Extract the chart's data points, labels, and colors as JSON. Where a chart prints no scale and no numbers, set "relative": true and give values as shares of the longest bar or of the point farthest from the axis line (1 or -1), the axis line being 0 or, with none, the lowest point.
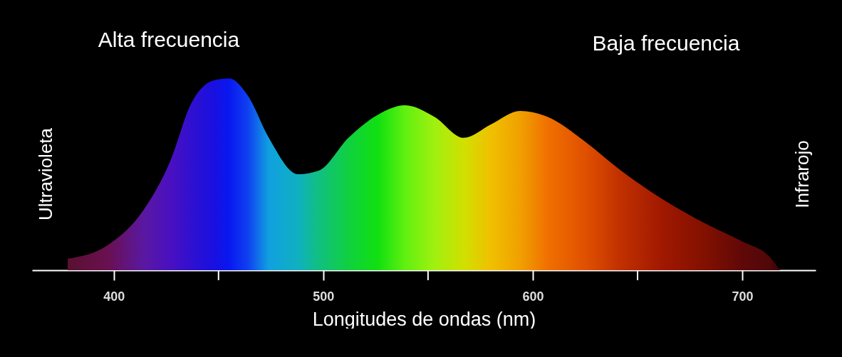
{
  "chart_data": {
    "type": "area",
    "xlabel": "Longitudes de ondas (nm)",
    "annotations": [
      "Alta frecuencia",
      "Baja frecuencia",
      "Ultravioleta",
      "Infrarojo"
    ],
    "relative": true,
    "x": [
      378,
      397,
      414,
      427,
      437,
      448,
      455,
      464,
      474,
      488,
      498,
      512,
      526,
      539,
      553,
      567,
      580,
      594,
      607,
      625,
      642,
      662,
      683,
      700,
      713,
      718
    ],
    "values": [
      0.06,
      0.13,
      0.31,
      0.57,
      0.87,
      0.99,
      1.0,
      0.91,
      0.69,
      0.5,
      0.52,
      0.69,
      0.81,
      0.86,
      0.8,
      0.69,
      0.76,
      0.83,
      0.8,
      0.67,
      0.52,
      0.37,
      0.24,
      0.15,
      0.07,
      0
    ],
    "colors": [
      "#5a1030",
      "#6a1050",
      "#5a18a0",
      "#4a10c0",
      "#3010d0",
      "#1810e0",
      "#0818f0",
      "#1040f0",
      "#10a0e0",
      "#10b0c0",
      "#10c080",
      "#10d040",
      "#10e010",
      "#60f010",
      "#a0f010",
      "#d0e000",
      "#f0c000",
      "#f0a000",
      "#f07000",
      "#e05000",
      "#c03000",
      "#a01800",
      "#801000",
      "#600808",
      "#500808",
      "#400000"
    ],
    "xlim": [
      361,
      735
    ],
    "xticks": [
      400,
      {
        "value": 450,
        "label": null
      },
      500,
      {
        "value": 550,
        "label": null
      },
      600,
      {
        "value": 650,
        "label": null
      },
      700
    ]
  }
}
